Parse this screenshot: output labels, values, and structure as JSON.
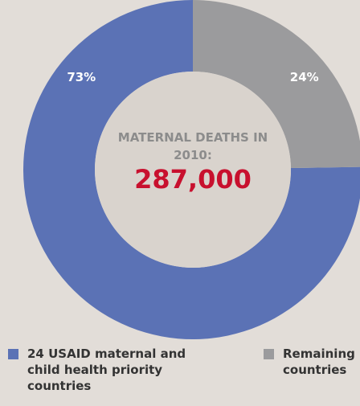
{
  "chart_data": {
    "type": "donut",
    "categories": [
      "24 USAID maternal and child health priority countries",
      "Remaining countries"
    ],
    "values": [
      73,
      24
    ],
    "value_labels": [
      "73%",
      "24%"
    ],
    "colors": [
      "#5b72b5",
      "#9b9b9d"
    ],
    "center_title": "MATERNAL DEATHS IN 2010:",
    "center_value": "287,000"
  }
}
